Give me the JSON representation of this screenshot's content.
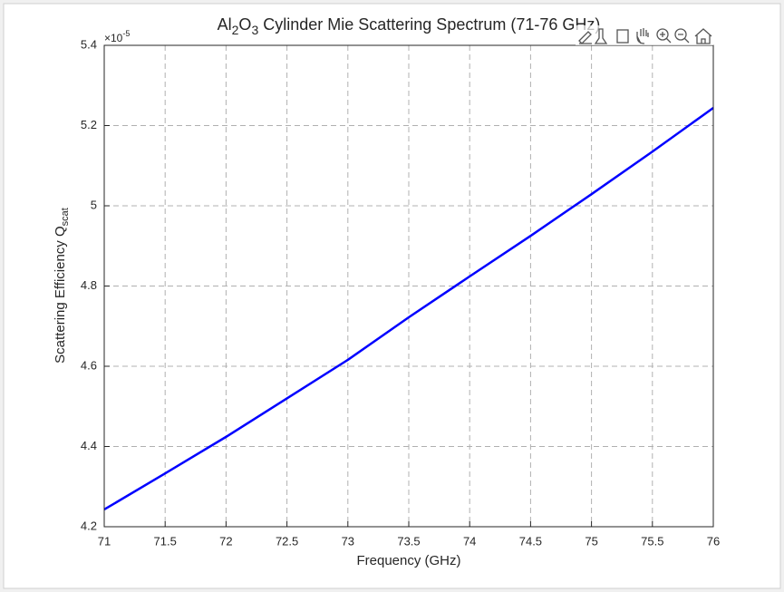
{
  "chart_data": {
    "type": "line",
    "title_parts": [
      "Al",
      "2",
      "O",
      "3",
      " Cylinder Mie Scattering Spectrum (71-76 GHz)"
    ],
    "xlabel": "Frequency (GHz)",
    "ylabel_parts": [
      "Scattering Efficiency Q",
      "scat"
    ],
    "y_multiplier": "×10",
    "y_exponent": "-5",
    "x": [
      71,
      71.5,
      72,
      72.5,
      73,
      73.5,
      74,
      74.5,
      75,
      75.5,
      76
    ],
    "values": [
      4.243,
      4.333,
      4.424,
      4.52,
      4.616,
      4.722,
      4.824,
      4.925,
      5.029,
      5.135,
      5.244
    ],
    "color": "#0000ff",
    "xlim": [
      71,
      76
    ],
    "ylim": [
      4.2,
      5.4
    ],
    "xticks": [
      71,
      71.5,
      72,
      72.5,
      73,
      73.5,
      74,
      74.5,
      75,
      75.5,
      76
    ],
    "yticks": [
      4.2,
      4.4,
      4.6,
      4.8,
      5,
      5.2,
      5.4
    ],
    "grid": true
  }
}
